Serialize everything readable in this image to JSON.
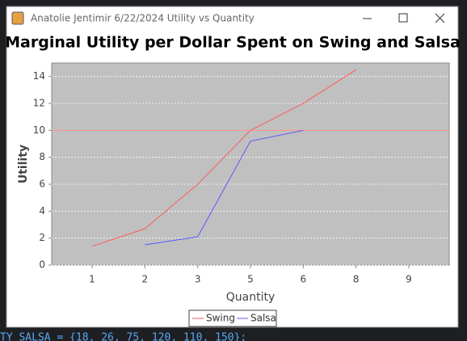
{
  "window_title": "Anatolie Jentimir 6/22/2024 Utility vs Quantity",
  "background_code": "TY_SALSA = {18, 26, 75, 120, 110, 150};",
  "chart_data": {
    "type": "line",
    "title": "Marginal Utility per Dollar Spent on Swing and Salsa",
    "x_label": "Quantity",
    "y_label": "Utility",
    "categories": [
      "1",
      "2",
      "3",
      "5",
      "6",
      "8",
      "9"
    ],
    "series": [
      {
        "name": "Swing",
        "color": "#ff5a5a",
        "values": [
          1.4,
          2.7,
          6,
          10,
          12,
          14.5,
          null
        ]
      },
      {
        "name": "Salsa",
        "color": "#5a5aff",
        "values": [
          null,
          1.5,
          2.1,
          9.2,
          10,
          null,
          null
        ]
      }
    ],
    "marker_value": 10,
    "marker_color": "#ff8a8a",
    "ylim": [
      0,
      15
    ],
    "yticks": [
      0,
      2,
      4,
      6,
      8,
      10,
      12,
      14
    ],
    "grid": true,
    "legend": "bottom"
  }
}
